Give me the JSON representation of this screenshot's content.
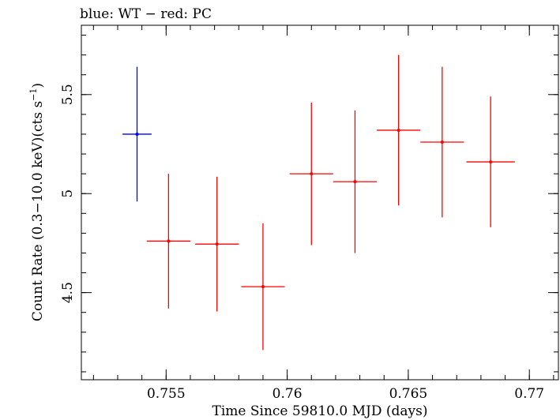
{
  "chart_data": {
    "type": "scatter",
    "title": "blue: WT − red: PC",
    "xlabel": "Time Since 59810.0 MJD (days)",
    "ylabel_main": "Count Rate (0.3−10.0 keV)(cts s",
    "ylabel_sup": "−1",
    "ylabel_end": ")",
    "xlim": [
      0.7515,
      0.7712
    ],
    "ylim": [
      4.06,
      5.85
    ],
    "x_major_ticks": [
      0.755,
      0.76,
      0.765,
      0.77
    ],
    "x_tick_labels": [
      "0.755",
      "0.76",
      "0.765",
      "0.77"
    ],
    "x_minor_step": 0.001,
    "y_major_ticks": [
      4.5,
      5,
      5.5
    ],
    "y_tick_labels": [
      "4.5",
      "5",
      "5.5"
    ],
    "y_minor_step": 0.1,
    "grid": false,
    "series": [
      {
        "color": "#0000ff",
        "points": [
          {
            "x": 0.7538,
            "xerr": 0.0006,
            "y": 5.3,
            "yerr": 0.34
          }
        ]
      },
      {
        "color": "#ff0000",
        "points": [
          {
            "x": 0.7551,
            "xerr": 0.0009,
            "y": 4.76,
            "yerr": 0.34
          },
          {
            "x": 0.7571,
            "xerr": 0.0009,
            "y": 4.745,
            "yerr": 0.34
          },
          {
            "x": 0.759,
            "xerr": 0.0009,
            "y": 4.53,
            "yerr": 0.32
          },
          {
            "x": 0.761,
            "xerr": 0.0009,
            "y": 5.1,
            "yerr": 0.36
          },
          {
            "x": 0.7628,
            "xerr": 0.0009,
            "y": 5.06,
            "yerr": 0.36
          },
          {
            "x": 0.7646,
            "xerr": 0.0009,
            "y": 5.32,
            "yerr": 0.38
          },
          {
            "x": 0.7664,
            "xerr": 0.0009,
            "y": 5.26,
            "yerr": 0.38
          },
          {
            "x": 0.7684,
            "xerr": 0.001,
            "y": 5.16,
            "yerr": 0.33
          }
        ]
      }
    ]
  }
}
